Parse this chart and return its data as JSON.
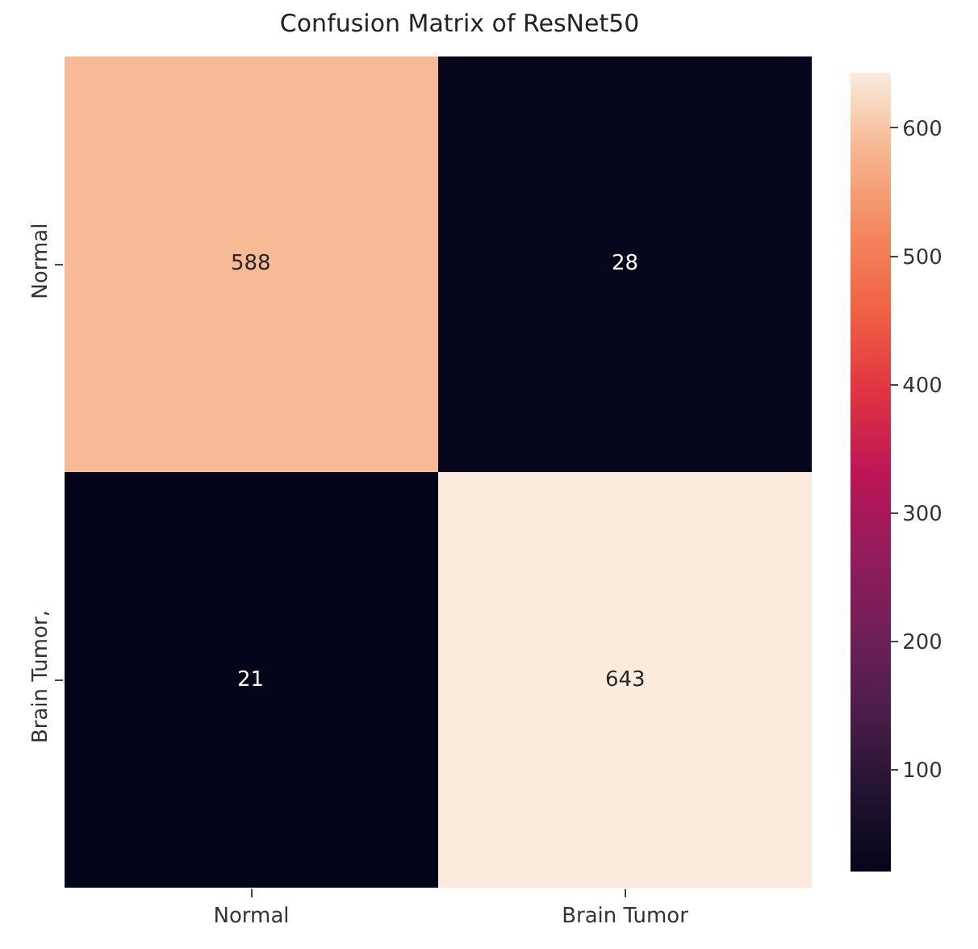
{
  "chart_data": {
    "type": "heatmap",
    "title": "Confusion Matrix of ResNet50",
    "categories": [
      "Normal",
      "Brain Tumor"
    ],
    "y_categories": [
      "Normal",
      "Brain Tumor,"
    ],
    "cells": [
      [
        588,
        28
      ],
      [
        21,
        643
      ]
    ],
    "clim": [
      21,
      643
    ],
    "cticks": [
      100,
      200,
      300,
      400,
      500,
      600
    ],
    "data_labels": true
  }
}
